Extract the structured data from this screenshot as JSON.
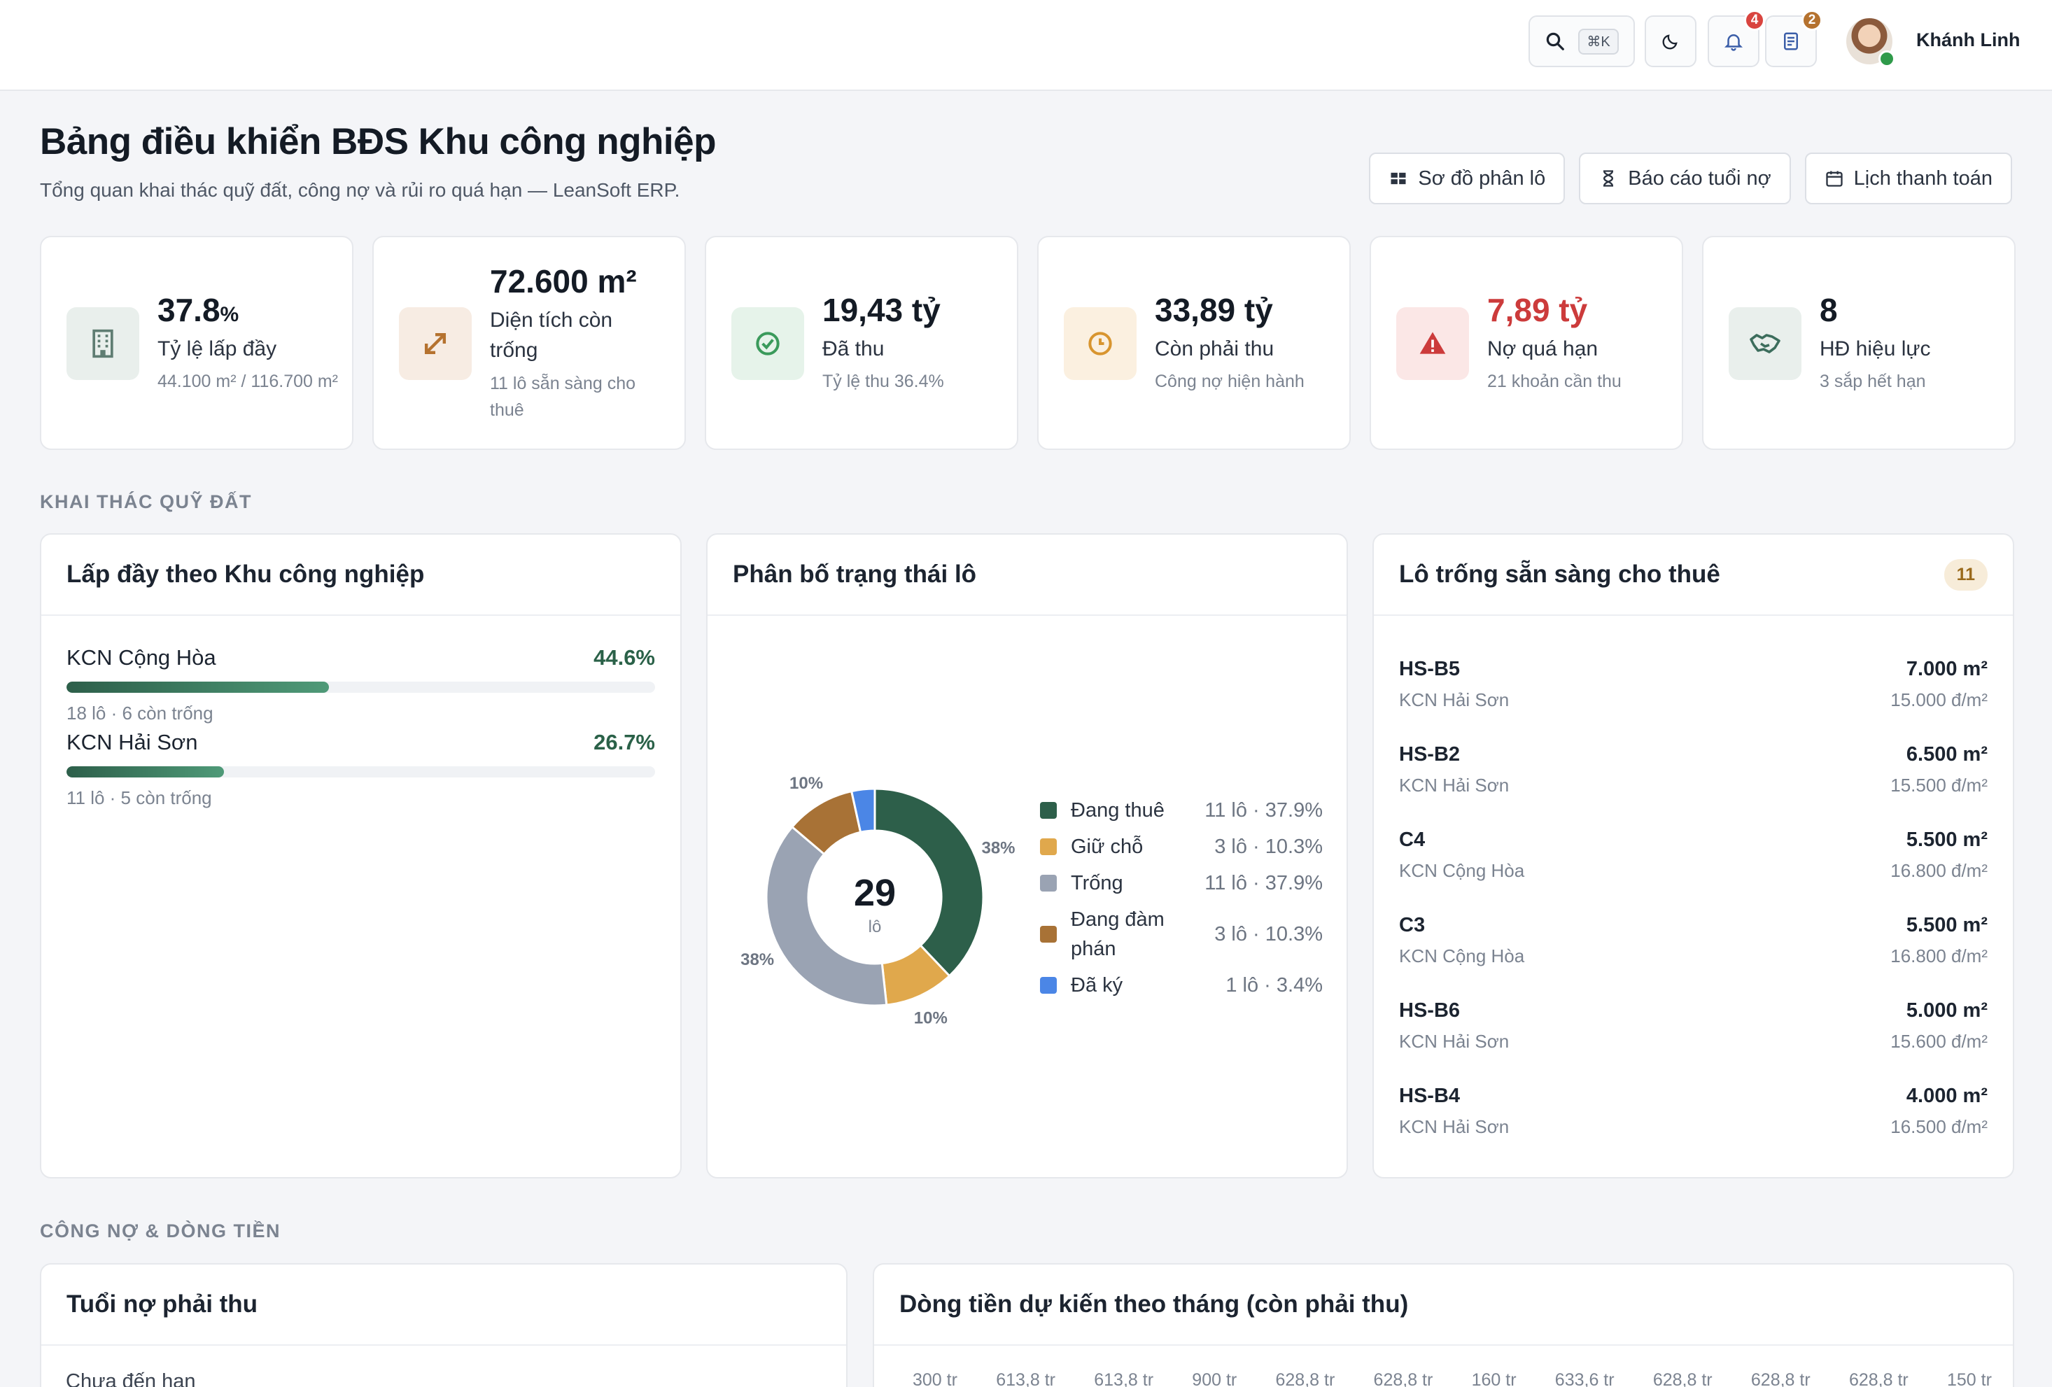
{
  "topbar": {
    "search_shortcut": "⌘K",
    "notif_count": "4",
    "tasks_count": "2",
    "user_name": "Khánh Linh"
  },
  "header": {
    "title": "Bảng điều khiển BĐS Khu công nghiệp",
    "subtitle": "Tổng quan khai thác quỹ đất, công nợ và rủi ro quá hạn — LeanSoft ERP.",
    "actions": [
      "Sơ đồ phân lô",
      "Báo cáo tuổi nợ",
      "Lịch thanh toán"
    ]
  },
  "kpis": [
    {
      "value": "37.8",
      "unit": "%",
      "label": "Tỷ lệ lấp đầy",
      "note": "44.100 m² / 116.700 m²",
      "icon": "building-icon",
      "accent": "#5f7d72"
    },
    {
      "value": "72.600 m²",
      "unit": "",
      "label": "Diện tích còn trống",
      "note": "11 lô sẵn sàng cho thuê",
      "icon": "expand-icon",
      "accent": "#b5722f"
    },
    {
      "value": "19,43 tỷ",
      "unit": "",
      "label": "Đã thu",
      "note": "Tỷ lệ thu 36.4%",
      "icon": "check-circle-icon",
      "accent": "#3a9a5b"
    },
    {
      "value": "33,89 tỷ",
      "unit": "",
      "label": "Còn phải thu",
      "note": "Công nợ hiện hành",
      "icon": "clock-icon",
      "accent": "#d8952f"
    },
    {
      "value": "7,89 tỷ",
      "unit": "",
      "label": "Nợ quá hạn",
      "note": "21 khoản cần thu",
      "icon": "warning-icon",
      "accent": "#cc3b3b"
    },
    {
      "value": "8",
      "unit": "",
      "label": "HĐ hiệu lực",
      "note": "3 sắp hết hạn",
      "icon": "handshake-icon",
      "accent": "#3c6d5c"
    }
  ],
  "sections": {
    "land": "KHAI THÁC QUỸ ĐẤT",
    "debt": "CÔNG NỢ & DÒNG TIỀN"
  },
  "occupancy": {
    "title": "Lấp đầy theo Khu công nghiệp",
    "items": [
      {
        "name": "KCN Cộng Hòa",
        "pct": "44.6%",
        "value": 44.6,
        "sub": "18 lô · 6 còn trống"
      },
      {
        "name": "KCN Hải Sơn",
        "pct": "26.7%",
        "value": 26.7,
        "sub": "11 lô · 5 còn trống"
      }
    ]
  },
  "status_chart": {
    "title": "Phân bố trạng thái lô",
    "center_value": "29",
    "center_unit": "lô",
    "slices": [
      {
        "name": "Đang thuê",
        "value": 11,
        "detail": "11 lô · 37.9%",
        "pct_label": "38%",
        "color": "#2d5f4a"
      },
      {
        "name": "Giữ chỗ",
        "value": 3,
        "detail": "3 lô · 10.3%",
        "pct_label": "10%",
        "color": "#e0a84c"
      },
      {
        "name": "Trống",
        "value": 11,
        "detail": "11 lô · 37.9%",
        "pct_label": "38%",
        "color": "#9aa3b3"
      },
      {
        "name": "Đang đàm phán",
        "value": 3,
        "detail": "3 lô · 10.3%",
        "pct_label": "10%",
        "color": "#a87236"
      },
      {
        "name": "Đã ký",
        "value": 1,
        "detail": "1 lô · 3.4%",
        "pct_label": "",
        "color": "#4b86e6"
      }
    ]
  },
  "available_lots": {
    "title": "Lô trống sẵn sàng cho thuê",
    "count": "11",
    "items": [
      {
        "code": "HS-B5",
        "park": "KCN Hải Sơn",
        "area": "7.000 m²",
        "price": "15.000 đ/m²"
      },
      {
        "code": "HS-B2",
        "park": "KCN Hải Sơn",
        "area": "6.500 m²",
        "price": "15.500 đ/m²"
      },
      {
        "code": "C4",
        "park": "KCN Cộng Hòa",
        "area": "5.500 m²",
        "price": "16.800 đ/m²"
      },
      {
        "code": "C3",
        "park": "KCN Cộng Hòa",
        "area": "5.500 m²",
        "price": "16.800 đ/m²"
      },
      {
        "code": "HS-B6",
        "park": "KCN Hải Sơn",
        "area": "5.000 m²",
        "price": "15.600 đ/m²"
      },
      {
        "code": "HS-B4",
        "park": "KCN Hải Sơn",
        "area": "4.000 m²",
        "price": "16.500 đ/m²"
      }
    ]
  },
  "aging": {
    "title": "Tuổi nợ phải thu",
    "first_row": "Chưa đến hạn"
  },
  "cashflow": {
    "title": "Dòng tiền dự kiến theo tháng (còn phải thu)",
    "value_labels": [
      "300 tr",
      "613,8 tr",
      "613,8 tr",
      "900 tr",
      "628,8 tr",
      "628,8 tr",
      "160 tr",
      "633,6 tr",
      "628,8 tr",
      "628,8 tr",
      "628,8 tr",
      "150 tr"
    ]
  }
}
